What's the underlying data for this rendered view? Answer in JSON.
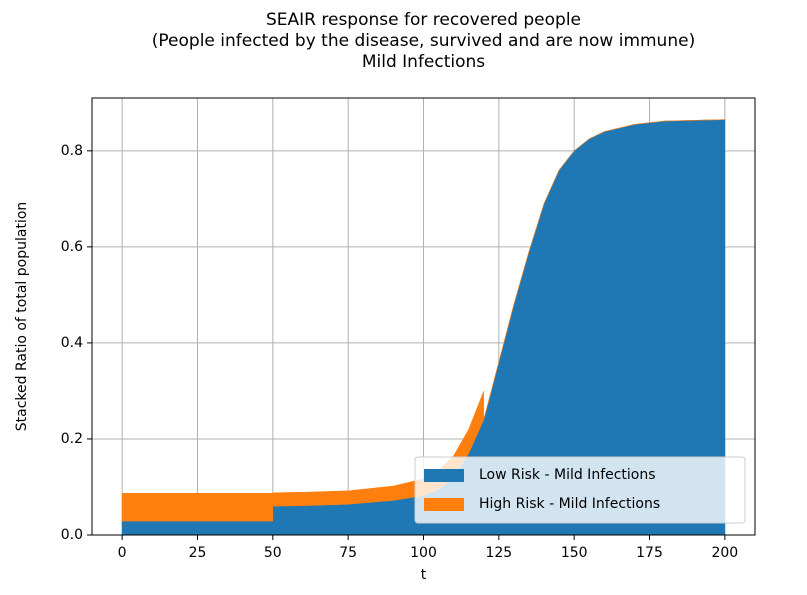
{
  "chart_data": {
    "type": "stackplot",
    "title": "SEAIR response for recovered people\n(People infected by the disease, survived and are now immune)\nMild Infections",
    "xlabel": "t",
    "ylabel": "Stacked Ratio of total population",
    "x": [
      0,
      50,
      50,
      60,
      75,
      90,
      100,
      105,
      110,
      115,
      120,
      120,
      125,
      130,
      135,
      140,
      145,
      150,
      155,
      160,
      170,
      180,
      200
    ],
    "series": [
      {
        "name": "Low Risk - Mild Infections",
        "color": "#1f77b4",
        "values": [
          0.029,
          0.029,
          0.06,
          0.061,
          0.064,
          0.072,
          0.082,
          0.095,
          0.12,
          0.17,
          0.24,
          0.24,
          0.36,
          0.48,
          0.59,
          0.69,
          0.76,
          0.8,
          0.825,
          0.84,
          0.855,
          0.862,
          0.865
        ]
      },
      {
        "name": "High Risk - Mild Infections",
        "color": "#ff7f0e",
        "values": [
          0.058,
          0.058,
          0.028,
          0.028,
          0.028,
          0.03,
          0.035,
          0.04,
          0.045,
          0.05,
          0.06,
          0,
          0,
          0,
          0,
          0,
          0,
          0,
          0,
          0,
          0,
          0,
          0
        ]
      }
    ],
    "xlim": [
      -10,
      210
    ],
    "ylim": [
      0,
      0.91
    ],
    "xticks": [
      0,
      25,
      50,
      75,
      100,
      125,
      150,
      175,
      200
    ],
    "yticks": [
      {
        "value": 0,
        "label": "0.0"
      },
      0.2,
      0.4,
      0.6,
      0.8
    ],
    "grid": true,
    "legend": "lower right"
  }
}
